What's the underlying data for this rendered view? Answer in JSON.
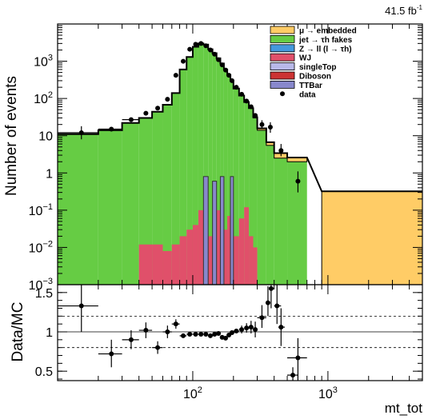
{
  "header": {
    "lumi_label": "41.5 fb",
    "lumi_exponent": "-1"
  },
  "chart_data": [
    {
      "type": "bar",
      "panel": "main",
      "ylabel": "Number of events",
      "yscale": "log",
      "ylim": [
        0.001,
        10000
      ],
      "xscale": "log",
      "xlim": [
        10,
        5000
      ],
      "y_ticks": [
        {
          "v": 1000,
          "base": "10",
          "exp": "3"
        },
        {
          "v": 100,
          "base": "10",
          "exp": "2"
        },
        {
          "v": 10,
          "base": "10",
          "exp": ""
        },
        {
          "v": 1,
          "base": "1",
          "exp": ""
        },
        {
          "v": 0.1,
          "base": "10",
          "exp": "−1"
        },
        {
          "v": 0.01,
          "base": "10",
          "exp": "−2"
        },
        {
          "v": 0.001,
          "base": "10",
          "exp": "−3"
        }
      ],
      "legend": [
        {
          "key": "mu_embedded",
          "label": "μ → embedded",
          "color": "#ffcc66",
          "mark": "box"
        },
        {
          "key": "jet_fakes",
          "label": "jet → τh fakes",
          "color": "#66cc44",
          "mark": "box"
        },
        {
          "key": "ztautau",
          "label": "Z → ll (l → τh)",
          "color": "#4499dd",
          "mark": "box"
        },
        {
          "key": "wj",
          "label": "WJ",
          "color": "#e0506a",
          "mark": "box"
        },
        {
          "key": "singletop",
          "label": "singleTop",
          "color": "#b8b8e8",
          "mark": "box"
        },
        {
          "key": "diboson",
          "label": "Diboson",
          "color": "#cc3333",
          "mark": "box"
        },
        {
          "key": "ttbar",
          "label": "TTBar",
          "color": "#8888cc",
          "mark": "box"
        },
        {
          "key": "data",
          "label": "data",
          "color": "#000000",
          "mark": "dot"
        }
      ],
      "bin_edges": [
        10,
        20,
        30,
        40,
        50,
        60,
        70,
        80,
        90,
        100,
        110,
        120,
        130,
        140,
        150,
        160,
        170,
        180,
        190,
        200,
        220,
        240,
        260,
        280,
        300,
        350,
        400,
        500,
        700,
        900,
        5000
      ],
      "series": [
        {
          "name": "jet → τh fakes",
          "color": "#66cc44",
          "values": [
            11,
            14,
            22,
            30,
            44,
            68,
            140,
            600,
            1300,
            2450,
            3000,
            2800,
            2100,
            1650,
            1200,
            870,
            600,
            430,
            300,
            185,
            120,
            80,
            55,
            30,
            14,
            5.5,
            2.5,
            2.0,
            0.001,
            0.001
          ]
        },
        {
          "name": "μ → embedded",
          "color": "#ffcc66",
          "values": [
            null,
            null,
            null,
            null,
            null,
            null,
            null,
            null,
            null,
            null,
            null,
            null,
            null,
            null,
            null,
            null,
            null,
            null,
            null,
            null,
            null,
            null,
            null,
            1.5,
            1.8,
            1.2,
            0.9,
            0.6,
            null,
            0.32
          ]
        },
        {
          "name": "WJ",
          "color": "#e0506a",
          "values": [
            null,
            null,
            null,
            0.012,
            0.012,
            0.008,
            0.012,
            0.02,
            0.03,
            0.04,
            0.1,
            0.05,
            0.02,
            0.08,
            0.1,
            0.05,
            0.03,
            0.07,
            0.06,
            0.02,
            0.06,
            0.12,
            0.02,
            0.01,
            null,
            null,
            null,
            null,
            null,
            null
          ]
        },
        {
          "name": "TTBar",
          "color": "#8888cc",
          "values": [
            null,
            null,
            null,
            null,
            null,
            null,
            null,
            null,
            null,
            null,
            null,
            0.8,
            null,
            0.6,
            null,
            0.8,
            null,
            null,
            0.8,
            null,
            null,
            null,
            null,
            null,
            null,
            null,
            null,
            null,
            null,
            null
          ]
        }
      ],
      "data_points": [
        {
          "x": 15,
          "y": 12,
          "xlo": 10,
          "xhi": 20,
          "ylo": 8,
          "yhi": 18
        },
        {
          "x": 25,
          "y": 15,
          "xlo": 20,
          "xhi": 30
        },
        {
          "x": 35,
          "y": 27,
          "xlo": 30,
          "xhi": 40
        },
        {
          "x": 45,
          "y": 40
        },
        {
          "x": 55,
          "y": 55
        },
        {
          "x": 65,
          "y": 95
        },
        {
          "x": 75,
          "y": 420
        },
        {
          "x": 85,
          "y": 1000
        },
        {
          "x": 95,
          "y": 2100
        },
        {
          "x": 105,
          "y": 2850
        },
        {
          "x": 115,
          "y": 3000
        },
        {
          "x": 125,
          "y": 2600
        },
        {
          "x": 135,
          "y": 2000
        },
        {
          "x": 145,
          "y": 1550
        },
        {
          "x": 155,
          "y": 1100
        },
        {
          "x": 165,
          "y": 800
        },
        {
          "x": 175,
          "y": 580
        },
        {
          "x": 185,
          "y": 420
        },
        {
          "x": 195,
          "y": 300
        },
        {
          "x": 210,
          "y": 200
        },
        {
          "x": 230,
          "y": 130
        },
        {
          "x": 250,
          "y": 85
        },
        {
          "x": 270,
          "y": 60
        },
        {
          "x": 290,
          "y": 35
        },
        {
          "x": 325,
          "y": 20,
          "ylo": 15,
          "yhi": 26
        },
        {
          "x": 375,
          "y": 17,
          "ylo": 12,
          "yhi": 23
        },
        {
          "x": 450,
          "y": 4,
          "ylo": 2.8,
          "yhi": 6
        },
        {
          "x": 600,
          "y": 0.6,
          "ylo": 0.3,
          "yhi": 1.1
        }
      ]
    },
    {
      "type": "scatter",
      "panel": "ratio",
      "xlabel": "mt_tot",
      "ylabel": "Data/MC",
      "xscale": "log",
      "xlim": [
        10,
        5000
      ],
      "ylim": [
        0.38,
        1.6
      ],
      "y_ticks": [
        "0.5",
        "1",
        "1.5"
      ],
      "x_ticks": [
        {
          "v": 100,
          "base": "10",
          "exp": "2"
        },
        {
          "v": 1000,
          "base": "10",
          "exp": "3"
        }
      ],
      "guide_lines": [
        0.8,
        1.0,
        1.2
      ],
      "points": [
        {
          "x": 15,
          "y": 1.33,
          "xlo": 10,
          "xhi": 20,
          "ylo": 1.0,
          "yhi": 1.66
        },
        {
          "x": 25,
          "y": 0.72,
          "xlo": 20,
          "xhi": 30,
          "ylo": 0.55,
          "yhi": 0.9
        },
        {
          "x": 35,
          "y": 0.9,
          "xlo": 30,
          "xhi": 40,
          "ylo": 0.78,
          "yhi": 1.02
        },
        {
          "x": 45,
          "y": 1.02,
          "xlo": 40,
          "xhi": 50,
          "ylo": 0.92,
          "yhi": 1.12
        },
        {
          "x": 55,
          "y": 0.8,
          "xlo": 50,
          "xhi": 60,
          "ylo": 0.72,
          "yhi": 0.88
        },
        {
          "x": 65,
          "y": 1.0,
          "xlo": 60,
          "xhi": 70,
          "ylo": 0.92,
          "yhi": 1.08
        },
        {
          "x": 75,
          "y": 1.1,
          "xlo": 70,
          "xhi": 80,
          "ylo": 1.04,
          "yhi": 1.16
        },
        {
          "x": 85,
          "y": 0.95,
          "xlo": 80,
          "xhi": 90
        },
        {
          "x": 95,
          "y": 0.97,
          "xlo": 90,
          "xhi": 100
        },
        {
          "x": 105,
          "y": 0.97,
          "xlo": 100,
          "xhi": 110
        },
        {
          "x": 115,
          "y": 0.97,
          "xlo": 110,
          "xhi": 120
        },
        {
          "x": 125,
          "y": 0.97,
          "xlo": 120,
          "xhi": 130
        },
        {
          "x": 135,
          "y": 0.95,
          "xlo": 130,
          "xhi": 140
        },
        {
          "x": 145,
          "y": 0.97,
          "xlo": 140,
          "xhi": 150
        },
        {
          "x": 155,
          "y": 0.98,
          "xlo": 150,
          "xhi": 160
        },
        {
          "x": 165,
          "y": 0.93,
          "xlo": 160,
          "xhi": 170
        },
        {
          "x": 175,
          "y": 0.92,
          "xlo": 170,
          "xhi": 180
        },
        {
          "x": 185,
          "y": 0.96,
          "xlo": 180,
          "xhi": 190
        },
        {
          "x": 195,
          "y": 0.99,
          "xlo": 190,
          "xhi": 200
        },
        {
          "x": 210,
          "y": 1.01,
          "xlo": 200,
          "xhi": 220
        },
        {
          "x": 230,
          "y": 1.03,
          "xlo": 220,
          "xhi": 240,
          "ylo": 0.98,
          "yhi": 1.08
        },
        {
          "x": 250,
          "y": 1.05,
          "xlo": 240,
          "xhi": 260,
          "ylo": 0.99,
          "yhi": 1.11
        },
        {
          "x": 270,
          "y": 1.06,
          "xlo": 260,
          "xhi": 280,
          "ylo": 0.98,
          "yhi": 1.14
        },
        {
          "x": 290,
          "y": 1.03,
          "xlo": 280,
          "xhi": 300,
          "ylo": 0.93,
          "yhi": 1.13
        },
        {
          "x": 325,
          "y": 1.18,
          "xlo": 300,
          "xhi": 350,
          "ylo": 1.05,
          "yhi": 1.34
        },
        {
          "x": 360,
          "y": 1.37,
          "xlo": 350,
          "xhi": 370,
          "ylo": 1.2,
          "yhi": 1.58
        },
        {
          "x": 380,
          "y": 1.55,
          "xlo": 370,
          "xhi": 400,
          "ylo": 1.3,
          "yhi": 1.6
        },
        {
          "x": 420,
          "y": 1.33,
          "xlo": 400,
          "xhi": 450,
          "ylo": 1.1,
          "yhi": 1.6
        },
        {
          "x": 450,
          "y": 1.06,
          "xlo": 430,
          "xhi": 480,
          "ylo": 0.82,
          "yhi": 1.3
        },
        {
          "x": 550,
          "y": 0.45,
          "xlo": 500,
          "xhi": 600,
          "ylo": 0.38,
          "yhi": 0.55
        },
        {
          "x": 600,
          "y": 0.67,
          "xlo": 500,
          "xhi": 700,
          "ylo": 0.38,
          "yhi": 0.92
        }
      ]
    }
  ]
}
